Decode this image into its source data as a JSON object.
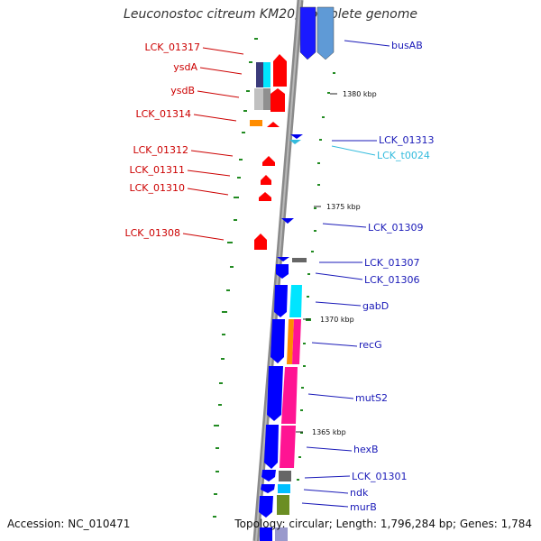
{
  "title": "Leuconostoc citreum KM20, complete genome",
  "footer": {
    "accession": "Accession: NC_010471",
    "topology": "Topology: circular; Length: 1,796,284 bp; Genes: 1,784"
  },
  "colors": {
    "forward_label": "#cc0000",
    "reverse_label": "#1a1ab8",
    "rna_label": "#33bbdd",
    "backbone": "#8a8a8a",
    "tick": "#228b22",
    "gene_forward": "#ff0000",
    "gene_reverse": "#0000ff"
  },
  "scale_labels": [
    "1380 kbp",
    "1375 kbp",
    "1370 kbp",
    "1365 kbp"
  ],
  "forward_genes": [
    "LCK_01317",
    "ysdA",
    "ysdB",
    "LCK_01314",
    "LCK_01312",
    "LCK_01311",
    "LCK_01310",
    "LCK_01308"
  ],
  "reverse_genes": [
    "busAB",
    "LCK_01313",
    "LCK_t0024",
    "LCK_01309",
    "LCK_01307",
    "LCK_01306",
    "gabD",
    "recG",
    "mutS2",
    "hexB",
    "LCK_01301",
    "ndk",
    "murB"
  ]
}
